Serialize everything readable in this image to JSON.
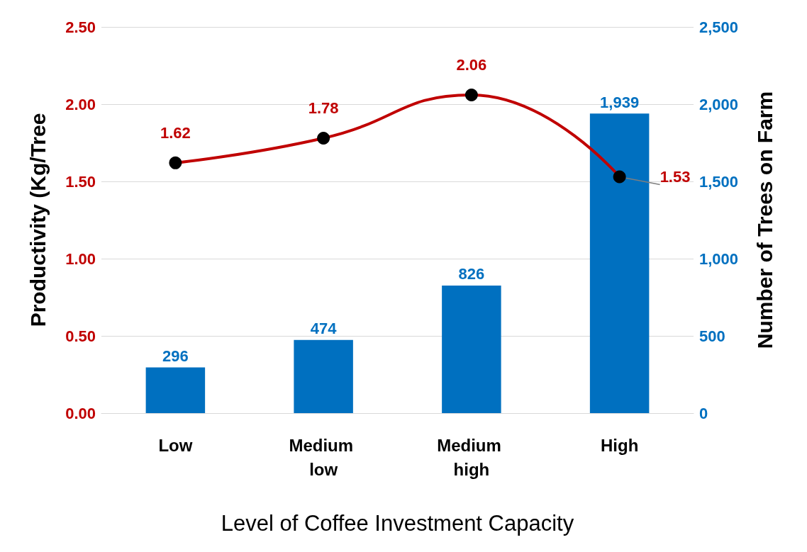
{
  "chart_data": {
    "type": "bar",
    "xlabel": "Level of Coffee Investment Capacity",
    "ylabel": "Productivity (Kg/Tree",
    "y2label": "Number of Trees on Farm",
    "categories": [
      "Low",
      "Medium low",
      "Medium high",
      "High"
    ],
    "series": [
      {
        "axis": "y2",
        "color": "#0070c0",
        "values": [
          296,
          474,
          826,
          1939
        ],
        "value_labels": [
          "296",
          "474",
          "826",
          "1,939"
        ]
      },
      {
        "type": "line",
        "axis": "y",
        "color": "#c00000",
        "values": [
          1.62,
          1.78,
          2.06,
          1.53
        ]
      }
    ],
    "ylim": [
      0,
      2.5
    ],
    "yticks": [
      {
        "value": 0,
        "label": "0.00"
      },
      {
        "value": 0.5,
        "label": "0.50"
      },
      {
        "value": 1,
        "label": "1.00"
      },
      {
        "value": 1.5,
        "label": "1.50"
      },
      {
        "value": 2,
        "label": "2.00"
      },
      {
        "value": 2.5,
        "label": "2.50"
      }
    ],
    "y2lim": [
      0,
      2500
    ],
    "y2ticks": [
      0,
      500,
      {
        "value": 1000,
        "label": "1,000"
      },
      {
        "value": 1500,
        "label": "1,500"
      },
      {
        "value": 2000,
        "label": "2,000"
      },
      {
        "value": 2500,
        "label": "2,500"
      }
    ],
    "grid": "y",
    "data_labels": true,
    "marker": "circle"
  }
}
